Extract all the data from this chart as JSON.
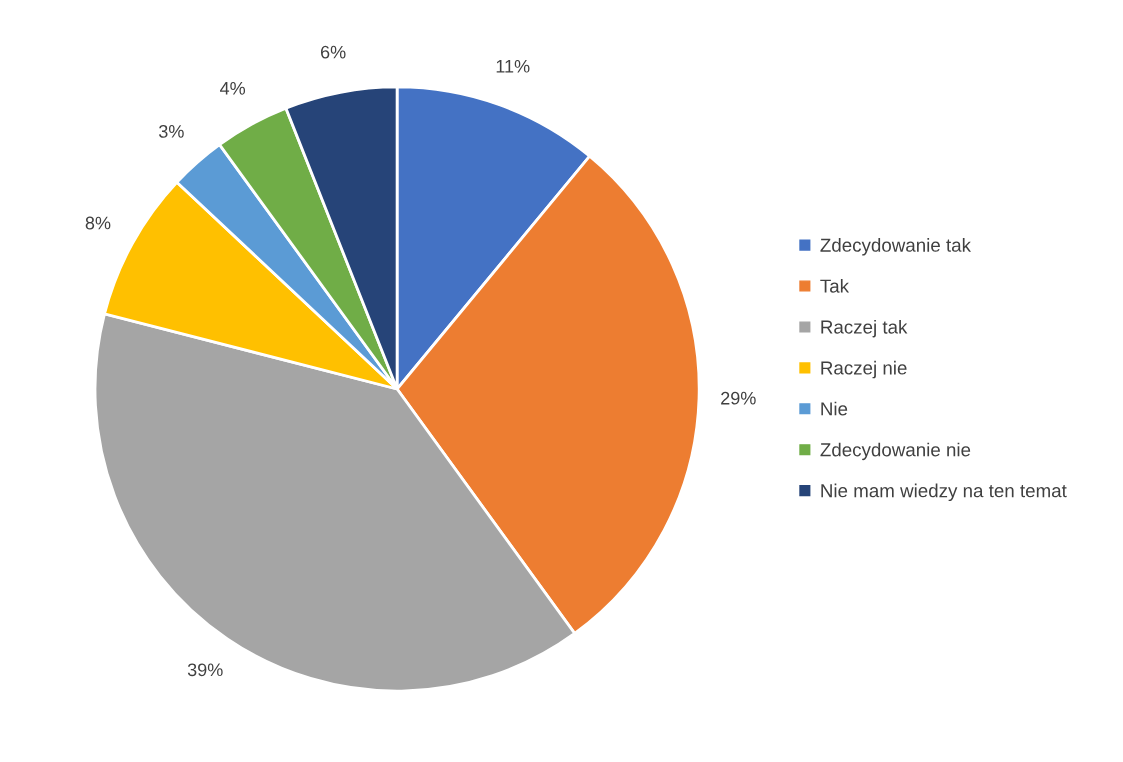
{
  "chart_data": {
    "type": "pie",
    "categories": [
      "Zdecydowanie tak",
      "Tak",
      "Raczej tak",
      "Raczej nie",
      "Nie",
      "Zdecydowanie nie",
      "Nie mam wiedzy na ten temat"
    ],
    "values": [
      11,
      29,
      39,
      8,
      3,
      4,
      6
    ],
    "colors": [
      "#4472c4",
      "#ed7d31",
      "#a5a5a5",
      "#ffc000",
      "#5b9bd5",
      "#70ad47",
      "#264478"
    ],
    "value_labels": [
      "11%",
      "29%",
      "39%",
      "8%",
      "3%",
      "4%",
      "6%"
    ],
    "legend": "right"
  }
}
